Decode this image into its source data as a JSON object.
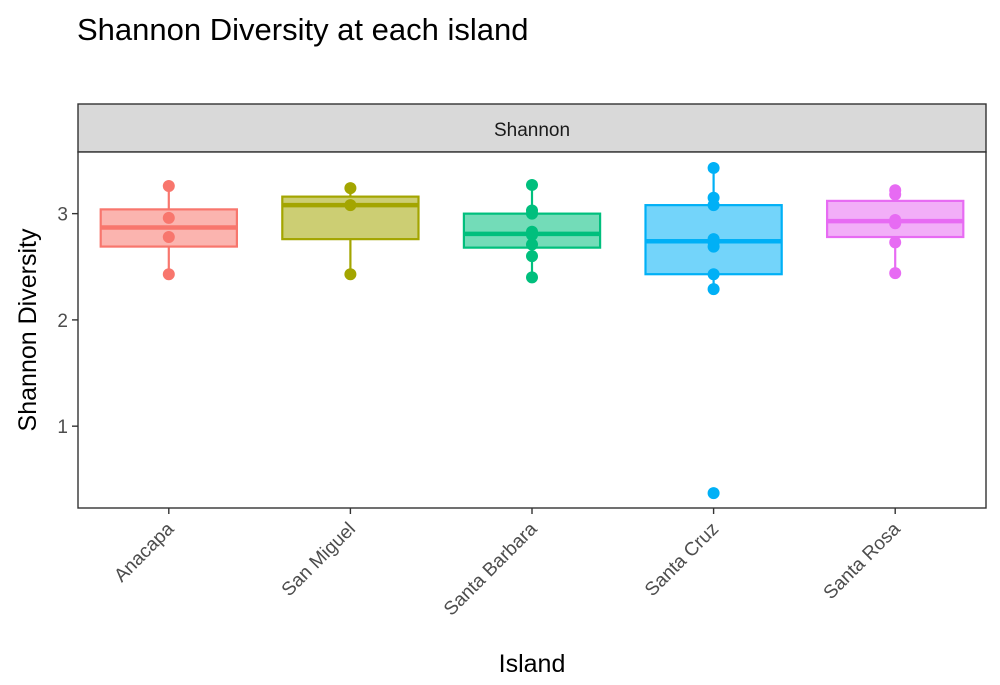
{
  "chart_data": {
    "type": "box",
    "title": "Shannon Diversity at each island",
    "facet_label": "Shannon",
    "xlabel": "Island",
    "ylabel": "Shannon Diversity",
    "ylim": [
      0.23,
      3.58
    ],
    "yticks": [
      1,
      2,
      3
    ],
    "grid": false,
    "legend": "none",
    "categories": [
      "Anacapa",
      "San Miguel",
      "Santa Barbara",
      "Santa Cruz",
      "Santa Rosa"
    ],
    "colors": [
      "#F8766D",
      "#A3A500",
      "#00BF7D",
      "#00B0F6",
      "#E76BF3"
    ],
    "boxes": [
      {
        "min": 2.43,
        "q1": 2.69,
        "median": 2.87,
        "q3": 3.04,
        "max": 3.26
      },
      {
        "min": 2.43,
        "q1": 2.76,
        "median": 3.08,
        "q3": 3.16,
        "max": 3.24
      },
      {
        "min": 2.4,
        "q1": 2.68,
        "median": 2.81,
        "q3": 3.0,
        "max": 3.27
      },
      {
        "min": 2.29,
        "q1": 2.43,
        "median": 2.74,
        "q3": 3.08,
        "max": 3.43
      },
      {
        "min": 2.44,
        "q1": 2.78,
        "median": 2.93,
        "q3": 3.12,
        "max": 3.22
      }
    ],
    "points": [
      [
        3.26,
        2.96,
        2.78,
        2.43
      ],
      [
        3.24,
        3.08,
        2.43
      ],
      [
        3.27,
        3.03,
        3.0,
        2.83,
        2.8,
        2.71,
        2.6,
        2.4
      ],
      [
        3.43,
        3.15,
        3.08,
        2.76,
        2.73,
        2.69,
        2.43,
        2.29,
        0.37
      ],
      [
        3.22,
        3.18,
        2.94,
        2.91,
        2.73,
        2.44
      ]
    ]
  }
}
